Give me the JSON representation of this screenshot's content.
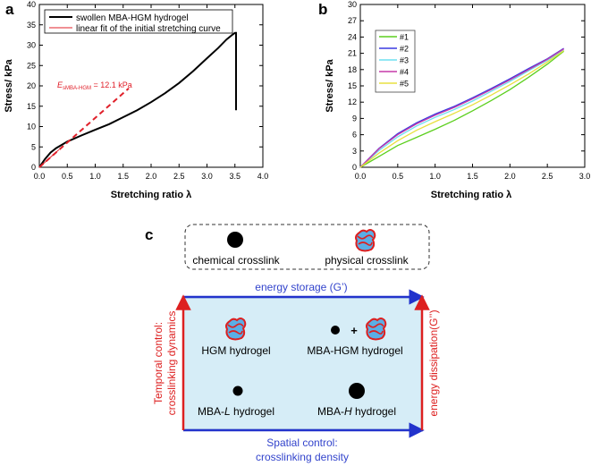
{
  "panel_labels": {
    "a": "a",
    "b": "b",
    "c": "c"
  },
  "colors": {
    "curve": "#000000",
    "fit": "#e0202a",
    "arrow_blue": "#2233cc",
    "arrow_red": "#dd2020",
    "box_fill": "#d6edf7",
    "label_blue": "#3344cc",
    "label_red": "#dd2020",
    "physical_blue": "#5aaee6"
  },
  "chart_data": [
    {
      "id": "a",
      "type": "line",
      "xlabel": "Stretching ratio λ",
      "ylabel": "Stress/ kPa",
      "xlim": [
        0,
        4
      ],
      "ylim": [
        0,
        40
      ],
      "xticks": [
        0,
        0.5,
        1.0,
        1.5,
        2.0,
        2.5,
        3.0,
        3.5,
        4.0
      ],
      "xtick_labels": [
        "0.0",
        "0.5",
        "1.0",
        "1.5",
        "2.0",
        "2.5",
        "3.0",
        "3.5",
        "4.0"
      ],
      "yticks": [
        0,
        5,
        10,
        15,
        20,
        25,
        30,
        35,
        40
      ],
      "ytick_labels": [
        "0",
        "5",
        "10",
        "15",
        "20",
        "25",
        "30",
        "35",
        "40"
      ],
      "legend": [
        "swollen MBA-HGM hydrogel",
        "linear fit of the initial stretching curve"
      ],
      "legend_position": "top-left",
      "series": [
        {
          "name": "swollen MBA-HGM hydrogel",
          "style": "solid-black",
          "x": [
            0,
            0.05,
            0.1,
            0.2,
            0.3,
            0.4,
            0.5,
            0.75,
            1.0,
            1.25,
            1.5,
            1.75,
            2.0,
            2.25,
            2.5,
            2.75,
            3.0,
            3.2,
            3.35,
            3.45,
            3.5,
            3.52,
            3.52
          ],
          "y": [
            0,
            1.0,
            2.0,
            3.6,
            4.7,
            5.5,
            6.3,
            7.8,
            9.2,
            10.6,
            12.3,
            14.0,
            16.0,
            18.2,
            20.7,
            23.6,
            26.8,
            29.3,
            31.4,
            32.5,
            33.0,
            33.0,
            14.0
          ]
        },
        {
          "name": "linear fit of the initial stretching curve",
          "style": "dashed-red",
          "x": [
            0,
            1.6
          ],
          "y": [
            0,
            19.4
          ]
        }
      ],
      "annotation": {
        "symbol": "E",
        "subscript": "sMBA-HGM",
        "text": " = 12.1 kPa"
      }
    },
    {
      "id": "b",
      "type": "line",
      "xlabel": "Stretching ratio λ",
      "ylabel": "Stress/ kPa",
      "xlim": [
        0,
        3
      ],
      "ylim": [
        0,
        30
      ],
      "xticks": [
        0,
        0.5,
        1.0,
        1.5,
        2.0,
        2.5,
        3.0
      ],
      "xtick_labels": [
        "0.0",
        "0.5",
        "1.0",
        "1.5",
        "2.0",
        "2.5",
        "3.0"
      ],
      "yticks": [
        0,
        3,
        6,
        9,
        12,
        15,
        18,
        21,
        24,
        27,
        30
      ],
      "ytick_labels": [
        "0",
        "3",
        "6",
        "9",
        "12",
        "15",
        "18",
        "21",
        "24",
        "27",
        "30"
      ],
      "legend_position": "top-left",
      "series": [
        {
          "name": "#1",
          "color": "#5ccf1e",
          "x": [
            0,
            0.25,
            0.5,
            0.75,
            1.0,
            1.25,
            1.5,
            1.75,
            2.0,
            2.25,
            2.5,
            2.72
          ],
          "y": [
            0,
            2.0,
            4.0,
            5.5,
            7.0,
            8.6,
            10.4,
            12.3,
            14.3,
            16.6,
            19.0,
            21.4
          ]
        },
        {
          "name": "#2",
          "color": "#3a3ae0",
          "x": [
            0,
            0.25,
            0.5,
            0.75,
            1.0,
            1.25,
            1.5,
            1.75,
            2.0,
            2.25,
            2.5,
            2.72
          ],
          "y": [
            0,
            3.5,
            6.2,
            8.2,
            9.8,
            11.2,
            12.8,
            14.5,
            16.3,
            18.2,
            20.0,
            21.9
          ]
        },
        {
          "name": "#3",
          "color": "#6ee0f0",
          "x": [
            0,
            0.25,
            0.5,
            0.75,
            1.0,
            1.25,
            1.5,
            1.75,
            2.0,
            2.25,
            2.5,
            2.72
          ],
          "y": [
            0,
            3.1,
            5.6,
            7.6,
            9.2,
            10.6,
            12.2,
            14.0,
            15.8,
            17.8,
            19.7,
            21.6
          ]
        },
        {
          "name": "#4",
          "color": "#c63aa8",
          "x": [
            0,
            0.25,
            0.5,
            0.75,
            1.0,
            1.25,
            1.5,
            1.75,
            2.0,
            2.25,
            2.5,
            2.72
          ],
          "y": [
            0,
            3.4,
            6.0,
            8.0,
            9.6,
            11.0,
            12.6,
            14.3,
            16.1,
            18.0,
            19.9,
            21.8
          ]
        },
        {
          "name": "#5",
          "color": "#e8e040",
          "x": [
            0,
            0.25,
            0.5,
            0.75,
            1.0,
            1.25,
            1.5,
            1.75,
            2.0,
            2.25,
            2.5,
            2.72
          ],
          "y": [
            0,
            2.6,
            4.9,
            6.8,
            8.4,
            9.9,
            11.5,
            13.3,
            15.2,
            17.2,
            19.4,
            21.5
          ]
        }
      ]
    }
  ],
  "diagram": {
    "legend_box": {
      "chemical": "chemical crosslink",
      "physical": "physical crosslink"
    },
    "top_label": "energy storage (G’)",
    "bottom_label_line1": "Spatial control:",
    "bottom_label_line2": "crosslinking density",
    "left_label_line1": "Temporal control:",
    "left_label_line2": "crosslinking dynamics",
    "right_label": "energy dissipation(G’’)",
    "quadrants": {
      "hgm": "HGM hydrogel",
      "mba_hgm": "MBA-HGM hydrogel",
      "plus": "+",
      "mba_l_prefix": "MBA-",
      "mba_l_italic": "L",
      "mba_l_suffix": " hydrogel",
      "mba_h_prefix": "MBA-",
      "mba_h_italic": "H",
      "mba_h_suffix": " hydrogel"
    }
  }
}
